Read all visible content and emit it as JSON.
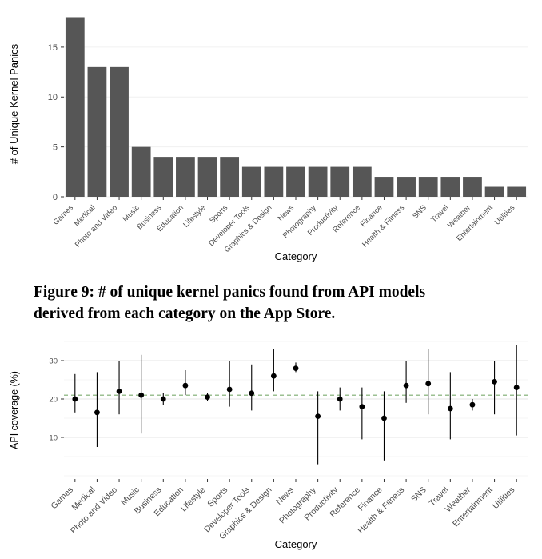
{
  "figure": {
    "caption_line1": "Figure 9: # of unique kernel panics found from API models",
    "caption_line2": "derived from each category on the App Store."
  },
  "chart_data": [
    {
      "type": "bar",
      "title": "",
      "xlabel": "Category",
      "ylabel": "# of Unique Kernel Panics",
      "categories": [
        "Games",
        "Medical",
        "Photo and Video",
        "Music",
        "Business",
        "Education",
        "Lifestyle",
        "Sports",
        "Developer Tools",
        "Graphics & Design",
        "News",
        "Photography",
        "Productivity",
        "Reference",
        "Finance",
        "Health & Fitness",
        "SNS",
        "Travel",
        "Weather",
        "Entertainment",
        "Utilities"
      ],
      "values": [
        18,
        13,
        13,
        5,
        4,
        4,
        4,
        4,
        3,
        3,
        3,
        3,
        3,
        3,
        2,
        2,
        2,
        2,
        2,
        1,
        1
      ],
      "ylim": [
        0,
        18.6
      ],
      "yticks": [
        0,
        5,
        10,
        15
      ],
      "bar_color": "#565656",
      "grid": "faint"
    },
    {
      "type": "pointrange",
      "title": "",
      "xlabel": "Category",
      "ylabel": "API coverage (%)",
      "categories": [
        "Games",
        "Medical",
        "Photo and Video",
        "Music",
        "Business",
        "Education",
        "Lifestyle",
        "Sports",
        "Developer Tools",
        "Graphics & Design",
        "News",
        "Photography",
        "Productivity",
        "Reference",
        "Finance",
        "Health & Fitness",
        "SNS",
        "Travel",
        "Weather",
        "Entertainment",
        "Utilities"
      ],
      "series": [
        {
          "name": "API coverage (%)",
          "points": [
            {
              "y": 20.0,
              "lo": 16.5,
              "hi": 26.5
            },
            {
              "y": 16.5,
              "lo": 7.5,
              "hi": 27.0
            },
            {
              "y": 22.0,
              "lo": 16.0,
              "hi": 30.0
            },
            {
              "y": 21.0,
              "lo": 11.0,
              "hi": 31.5
            },
            {
              "y": 20.0,
              "lo": 18.5,
              "hi": 21.5
            },
            {
              "y": 23.5,
              "lo": 21.0,
              "hi": 27.5
            },
            {
              "y": 20.5,
              "lo": 19.5,
              "hi": 21.5
            },
            {
              "y": 22.5,
              "lo": 18.0,
              "hi": 30.0
            },
            {
              "y": 21.5,
              "lo": 17.0,
              "hi": 29.0
            },
            {
              "y": 26.0,
              "lo": 22.0,
              "hi": 33.0
            },
            {
              "y": 28.0,
              "lo": 27.0,
              "hi": 29.5
            },
            {
              "y": 15.5,
              "lo": 3.0,
              "hi": 22.0
            },
            {
              "y": 20.0,
              "lo": 17.0,
              "hi": 23.0
            },
            {
              "y": 18.0,
              "lo": 9.5,
              "hi": 23.0
            },
            {
              "y": 15.0,
              "lo": 4.0,
              "hi": 22.0
            },
            {
              "y": 23.5,
              "lo": 19.0,
              "hi": 30.0
            },
            {
              "y": 24.0,
              "lo": 16.0,
              "hi": 33.0
            },
            {
              "y": 17.5,
              "lo": 9.5,
              "hi": 27.0
            },
            {
              "y": 18.5,
              "lo": 17.0,
              "hi": 20.0
            },
            {
              "y": 24.5,
              "lo": 16.0,
              "hi": 30.0
            },
            {
              "y": 23.0,
              "lo": 10.5,
              "hi": 34.0
            }
          ]
        }
      ],
      "reference_line": {
        "y": 21,
        "color": "#7bab6e",
        "style": "dashed"
      },
      "ylim": [
        0,
        35
      ],
      "yticks": [
        10,
        20,
        30
      ],
      "point_color": "#000000",
      "grid": "major-minor"
    }
  ]
}
